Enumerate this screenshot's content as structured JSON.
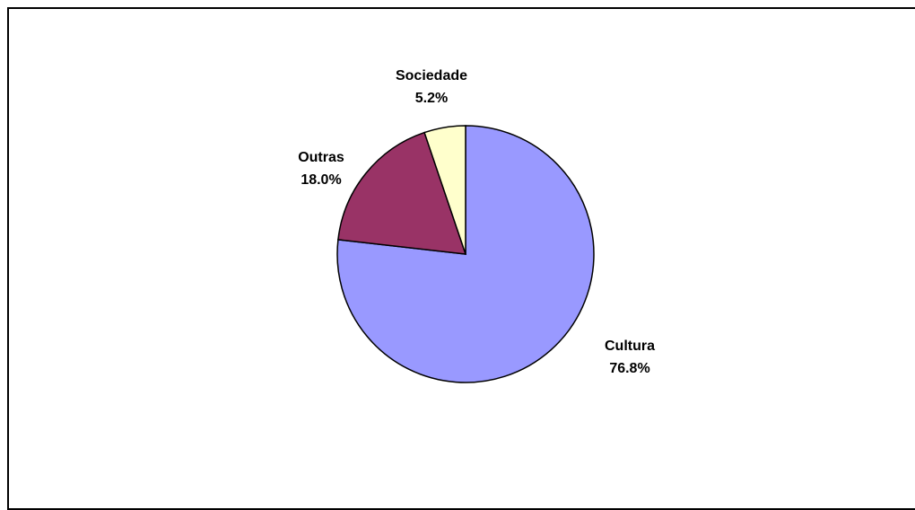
{
  "chart_data": {
    "type": "pie",
    "title": "",
    "slices": [
      {
        "label": "Cultura",
        "value": 76.8,
        "display": "76.8%",
        "color": "#9999FF"
      },
      {
        "label": "Sociedade",
        "value": 5.2,
        "display": "5.2%",
        "color": "#FFFFCC"
      },
      {
        "label": "Outras",
        "value": 18.0,
        "display": "18.0%",
        "color": "#993366"
      }
    ],
    "start": "top",
    "direction": "clockwise",
    "legend": "none"
  }
}
